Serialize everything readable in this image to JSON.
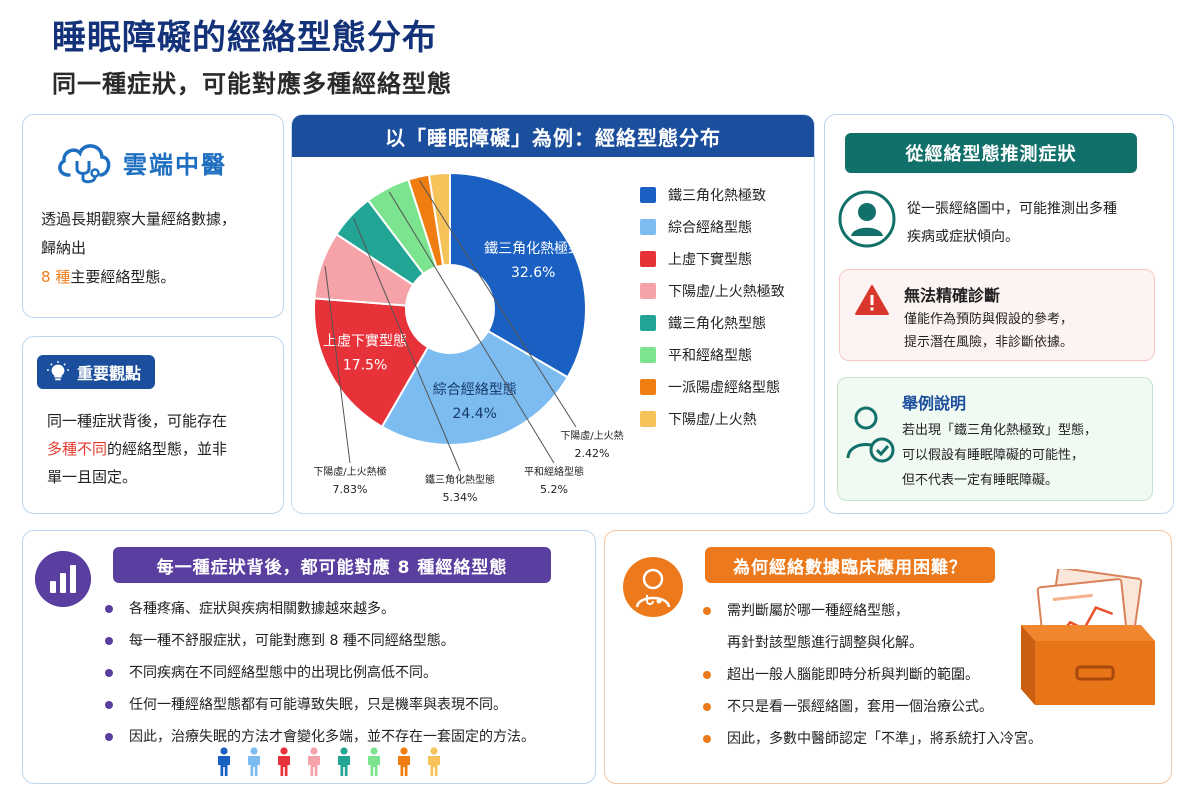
{
  "header": {
    "title": "睡眠障礙的經絡型態分布",
    "subtitle": "同一種症狀，可能對應多種經絡型態"
  },
  "logo": {
    "name": "雲端中醫",
    "icon": "cloud-stethoscope-icon"
  },
  "intro": {
    "line1": "透過長期觀察大量經絡數據，",
    "line2": "歸納出",
    "count": "8 種",
    "rest": "主要經絡型態。"
  },
  "insight": {
    "badge": "重要觀點",
    "icon": "lightbulb-icon",
    "line1": "同一種症狀背後，可能存在",
    "highlight": "多種不同",
    "line2_rest": "的經絡型態，並非",
    "line3": "單一且固定。"
  },
  "chart_title": "以「睡眠障礙」為例：經絡型態分布",
  "chart_data": {
    "type": "pie",
    "donut": true,
    "categories": [
      "鐵三角化熱極致",
      "綜合經絡型態",
      "上虛下實型態",
      "下陽虛/上火熱極致",
      "鐵三角化熱型態",
      "平和經絡型態",
      "一派陽虛經絡型態",
      "下陽虛/上火熱"
    ],
    "values": [
      32.6,
      24.4,
      17.5,
      7.83,
      5.34,
      5.2,
      2.42,
      2.42
    ],
    "colors": [
      "#1a5fc2",
      "#7cbcf0",
      "#e8323a",
      "#f5a3a8",
      "#23a596",
      "#7ce38e",
      "#f07d10",
      "#f6c35a"
    ],
    "labels": [
      {
        "name": "鐵三角化熱極致",
        "value": "32.6%"
      },
      {
        "name": "綜合經絡型態",
        "value": "24.4%"
      },
      {
        "name": "上虛下實型態",
        "value": "17.5%"
      },
      {
        "name": "下陽虛/上火熱極",
        "value": "7.83%"
      },
      {
        "name": "鐵三角化熱型態",
        "value": "5.34%"
      },
      {
        "name": "平和經絡型態",
        "value": "5.2%"
      },
      {
        "name": "下陽虛/上火熱",
        "value": "2.42%"
      }
    ],
    "legend": "right"
  },
  "right_panel": {
    "title": "從經絡型態推測症狀",
    "user_icon": "user-icon",
    "line1": "從一張經絡圖中，可能推測出多種",
    "line2": "疾病或症狀傾向。",
    "warn": {
      "icon": "warning-icon",
      "title": "無法精確診斷",
      "line1": "僅能作為預防與假設的參考，",
      "line2": "提示潛在風險，非診斷依據。"
    },
    "example": {
      "icon": "patient-check-icon",
      "title": "舉例說明",
      "line1": "若出現「鐵三角化熱極致」型態，",
      "line2": "可以假設有睡眠障礙的可能性，",
      "line3": "但不代表一定有睡眠障礙。"
    }
  },
  "bottom_left": {
    "icon": "bar-chart-icon",
    "title": "每一種症狀背後，都可能對應 8 種經絡型態",
    "items": [
      "各種疼痛、症狀與疾病相關數據越來越多。",
      "每一種不舒服症狀，可能對應到 8 種不同經絡型態。",
      "不同疾病在不同經絡型態中的出現比例高低不同。",
      "任何一種經絡型態都有可能導致失眠，只是機率與表現不同。",
      "因此，治療失眠的方法才會變化多端，並不存在一套固定的方法。"
    ],
    "bullet_color": "#5a3fa0",
    "people_icon": "person-icon",
    "people_colors": [
      "#1a5fc2",
      "#7cbcf0",
      "#e8323a",
      "#f5a3a8",
      "#23a596",
      "#7ce38e",
      "#f07d10",
      "#f6c35a"
    ]
  },
  "bottom_right": {
    "icon": "doctor-icon",
    "title": "為何經絡數據臨床應用困難？",
    "items": [
      "需判斷屬於哪一種經絡型態，",
      "再針對該型態進行調整與化解。",
      "超出一般人腦能即時分析與判斷的範圍。",
      "不只是看一張經絡圖，套用一個治療公式。",
      "因此，多數中醫師認定「不準」，將系統打入冷宮。"
    ],
    "bullet_color": "#ec7a1c",
    "art_icon": "drawer-document-icon"
  }
}
